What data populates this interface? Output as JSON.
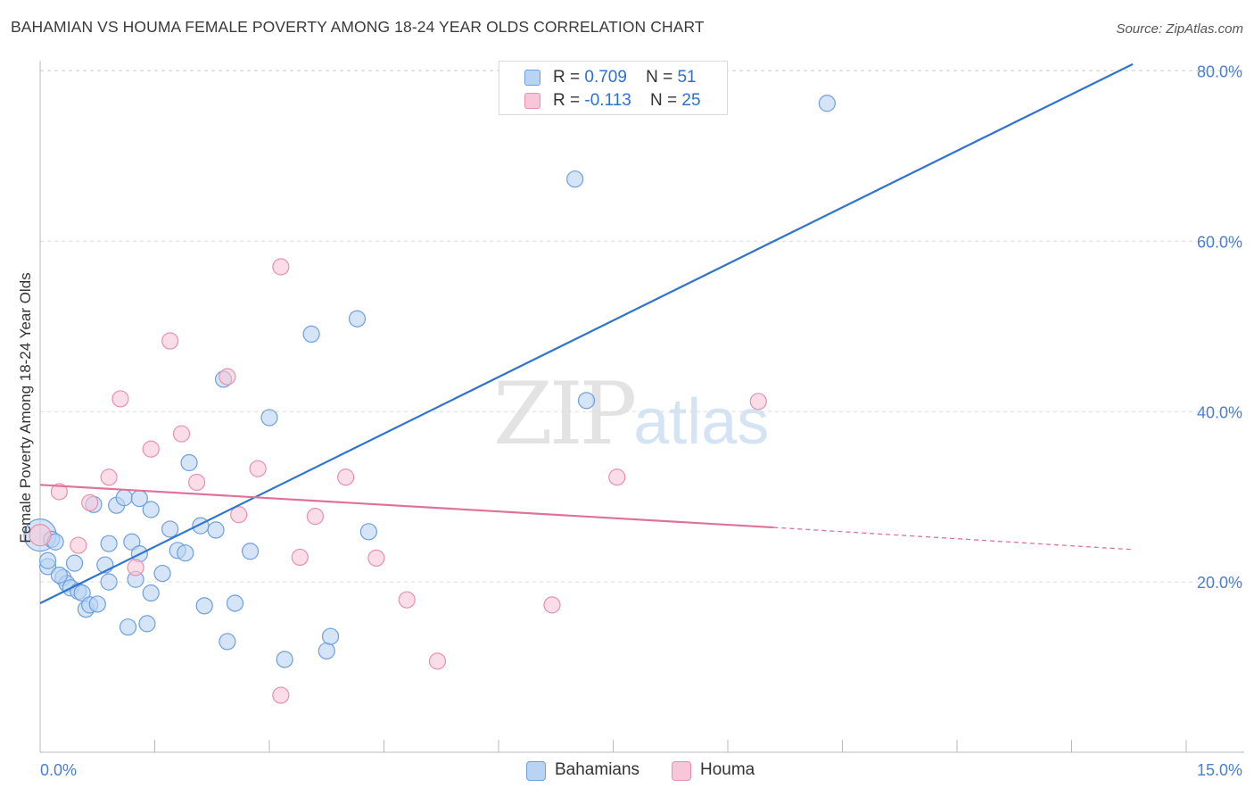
{
  "title": "BAHAMIAN VS HOUMA FEMALE POVERTY AMONG 18-24 YEAR OLDS CORRELATION CHART",
  "source": "Source: ZipAtlas.com",
  "watermark": {
    "zip": "ZIP",
    "atlas": "atlas"
  },
  "legend_top": {
    "rows": [
      {
        "r_label": "R =",
        "r_value": "0.709",
        "n_label": "N =",
        "n_value": "51"
      },
      {
        "r_label": "R =",
        "r_value": "-0.113",
        "n_label": "N =",
        "n_value": "25"
      }
    ]
  },
  "legend_bottom": {
    "items": [
      "Bahamians",
      "Houma"
    ]
  },
  "colors": {
    "bahamian_fill": "#b9d3f2",
    "bahamian_stroke": "#6e9fe0",
    "bahamian_line": "#2f74d0",
    "houma_fill": "#f8c7d7",
    "houma_stroke": "#e891ad",
    "houma_line": "#e0729a",
    "grid": "#dcdcdc",
    "tick_text": "#4a7fd0"
  },
  "chart_data": {
    "type": "scatter",
    "title": "BAHAMIAN VS HOUMA FEMALE POVERTY AMONG 18-24 YEAR OLDS CORRELATION CHART",
    "xlabel": "",
    "ylabel": "Female Poverty Among 18-24 Year Olds",
    "x_unit": "%",
    "y_unit": "%",
    "xlim": [
      0,
      15
    ],
    "ylim": [
      0,
      80
    ],
    "x_tick_labels": [
      "0.0%",
      "15.0%"
    ],
    "y_ticks": [
      20,
      40,
      60,
      80
    ],
    "y_tick_labels": [
      "20.0%",
      "40.0%",
      "60.0%",
      "80.0%"
    ],
    "grid": "horizontal dashed",
    "legend_position": "top-center and bottom",
    "series": [
      {
        "name": "Bahamians",
        "R": 0.709,
        "N": 51,
        "trend": {
          "x": [
            0,
            14.3
          ],
          "y": [
            17.5,
            80.8
          ]
        },
        "points": [
          [
            0.0,
            25.5
          ],
          [
            0.1,
            21.8
          ],
          [
            0.1,
            22.5
          ],
          [
            0.15,
            25.0
          ],
          [
            0.2,
            24.7
          ],
          [
            0.3,
            20.5
          ],
          [
            0.35,
            19.8
          ],
          [
            0.4,
            19.3
          ],
          [
            0.45,
            22.2
          ],
          [
            0.5,
            18.9
          ],
          [
            0.55,
            18.7
          ],
          [
            0.6,
            16.8
          ],
          [
            0.65,
            17.3
          ],
          [
            0.75,
            17.4
          ],
          [
            0.85,
            22.0
          ],
          [
            0.9,
            20.0
          ],
          [
            0.9,
            24.5
          ],
          [
            1.0,
            29.0
          ],
          [
            1.1,
            29.9
          ],
          [
            1.15,
            14.7
          ],
          [
            1.2,
            24.7
          ],
          [
            1.25,
            20.3
          ],
          [
            1.3,
            23.3
          ],
          [
            1.3,
            29.8
          ],
          [
            1.4,
            15.1
          ],
          [
            1.45,
            28.5
          ],
          [
            1.45,
            18.7
          ],
          [
            1.6,
            21.0
          ],
          [
            1.7,
            26.2
          ],
          [
            1.8,
            23.7
          ],
          [
            1.9,
            23.4
          ],
          [
            1.95,
            34.0
          ],
          [
            2.1,
            26.6
          ],
          [
            2.15,
            17.2
          ],
          [
            2.3,
            26.1
          ],
          [
            2.4,
            43.8
          ],
          [
            2.45,
            13.0
          ],
          [
            2.55,
            17.5
          ],
          [
            2.75,
            23.6
          ],
          [
            3.0,
            39.3
          ],
          [
            3.2,
            10.9
          ],
          [
            3.55,
            49.1
          ],
          [
            3.75,
            11.9
          ],
          [
            3.8,
            13.6
          ],
          [
            4.15,
            50.9
          ],
          [
            4.3,
            25.9
          ],
          [
            7.0,
            67.3
          ],
          [
            7.15,
            41.3
          ],
          [
            10.3,
            76.2
          ],
          [
            0.7,
            29.1
          ],
          [
            0.25,
            20.8
          ]
        ]
      },
      {
        "name": "Houma",
        "R": -0.113,
        "N": 25,
        "trend": {
          "x": [
            0,
            9.6
          ],
          "y": [
            31.4,
            26.4
          ]
        },
        "trend_dashed": {
          "x": [
            9.6,
            14.3
          ],
          "y": [
            26.4,
            23.8
          ]
        },
        "points": [
          [
            0.0,
            25.5
          ],
          [
            0.25,
            30.6
          ],
          [
            0.5,
            24.3
          ],
          [
            0.65,
            29.3
          ],
          [
            0.9,
            32.3
          ],
          [
            1.05,
            41.5
          ],
          [
            1.25,
            21.7
          ],
          [
            1.45,
            35.6
          ],
          [
            1.7,
            48.3
          ],
          [
            1.85,
            37.4
          ],
          [
            2.05,
            31.7
          ],
          [
            2.45,
            44.1
          ],
          [
            2.6,
            27.9
          ],
          [
            2.85,
            33.3
          ],
          [
            3.15,
            6.7
          ],
          [
            3.15,
            57.0
          ],
          [
            3.4,
            22.9
          ],
          [
            3.6,
            27.7
          ],
          [
            4.0,
            32.3
          ],
          [
            4.4,
            22.8
          ],
          [
            4.8,
            17.9
          ],
          [
            5.2,
            10.7
          ],
          [
            6.7,
            17.3
          ],
          [
            7.55,
            32.3
          ],
          [
            9.4,
            41.2
          ]
        ]
      }
    ]
  }
}
